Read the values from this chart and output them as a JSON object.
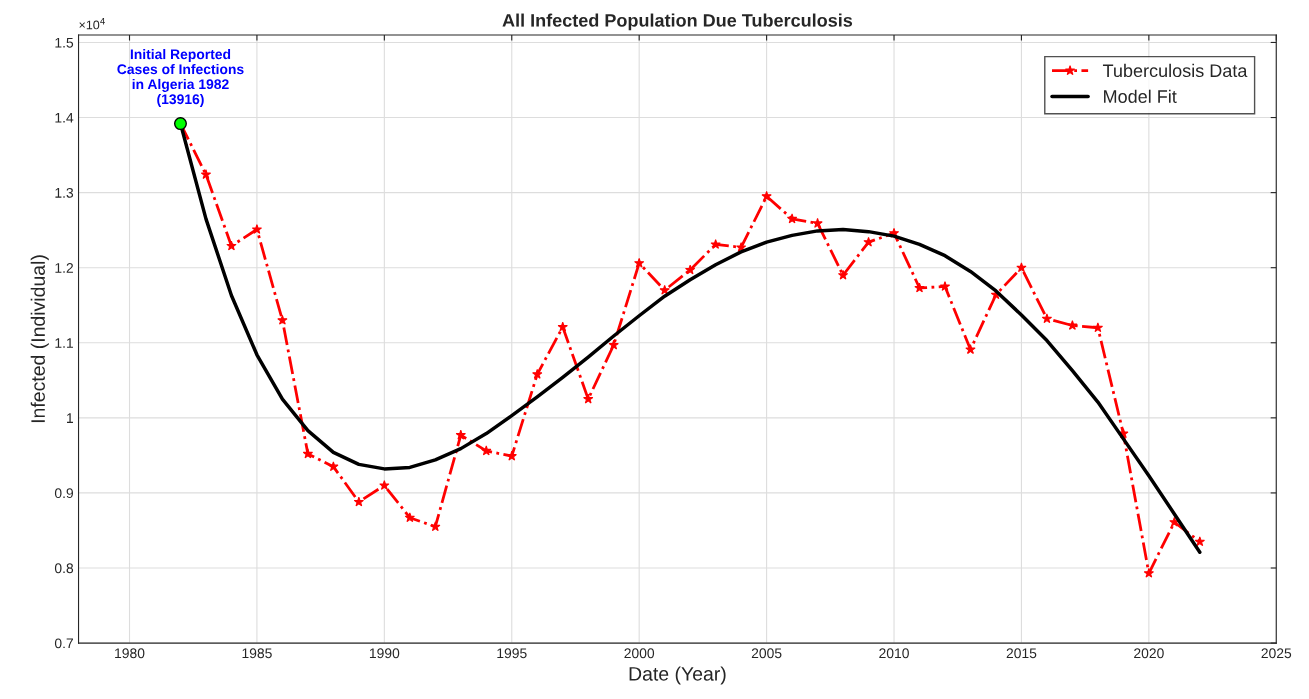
{
  "chart_data": {
    "type": "line",
    "title": "All Infected Population Due Tuberculosis",
    "xlabel": "Date (Year)",
    "ylabel": "Infected (Individual)",
    "x": [
      1982,
      1983,
      1984,
      1985,
      1986,
      1987,
      1988,
      1989,
      1990,
      1991,
      1992,
      1993,
      1994,
      1995,
      1996,
      1997,
      1998,
      1999,
      2000,
      2001,
      2002,
      2003,
      2004,
      2005,
      2006,
      2007,
      2008,
      2009,
      2010,
      2011,
      2012,
      2013,
      2014,
      2015,
      2016,
      2017,
      2018,
      2019,
      2020,
      2021,
      2022
    ],
    "series": [
      {
        "name": "Tuberculosis Data",
        "color": "#ff0000",
        "marker": "star",
        "line_style": "dashed",
        "values": [
          1.392,
          1.324,
          1.229,
          1.251,
          1.13,
          0.952,
          0.935,
          0.888,
          0.91,
          0.867,
          0.855,
          0.977,
          0.956,
          0.949,
          1.058,
          1.121,
          1.025,
          1.097,
          1.206,
          1.17,
          1.197,
          1.231,
          1.227,
          1.295,
          1.265,
          1.259,
          1.19,
          1.234,
          1.246,
          1.173,
          1.175,
          1.091,
          1.164,
          1.2,
          1.132,
          1.123,
          1.12,
          0.979,
          0.793,
          0.861,
          0.835
        ]
      },
      {
        "name": "Model Fit",
        "color": "#000000",
        "marker": "none",
        "line_style": "solid",
        "values": [
          1.392,
          1.265,
          1.163,
          1.084,
          1.025,
          0.983,
          0.954,
          0.938,
          0.932,
          0.934,
          0.944,
          0.959,
          0.979,
          1.003,
          1.028,
          1.054,
          1.081,
          1.109,
          1.136,
          1.162,
          1.184,
          1.204,
          1.221,
          1.234,
          1.243,
          1.249,
          1.251,
          1.248,
          1.242,
          1.231,
          1.216,
          1.195,
          1.169,
          1.137,
          1.103,
          1.063,
          1.021,
          0.972,
          0.923,
          0.872,
          0.821
        ]
      },
      {
        "type": "scatter",
        "color": "#00ff00",
        "marker": "circle",
        "x": [
          1982
        ],
        "values": [
          1.392
        ]
      }
    ],
    "xlim": [
      1978,
      2025
    ],
    "xticks": [
      1980,
      1985,
      1990,
      1995,
      2000,
      2005,
      2010,
      2015,
      2020,
      2025
    ],
    "ylim": [
      0.7,
      1.51
    ],
    "yticks": [
      0.7,
      0.8,
      0.9,
      1,
      1.1,
      1.2,
      1.3,
      1.4,
      1.5
    ],
    "annotations": [
      {
        "text": "Initial Reported\nCases of Infections\nin Algeria 1982\n(13916)",
        "x": 1982,
        "y": 1.392
      },
      "×10$^{4}$"
    ],
    "grid": true,
    "legend": "top right"
  }
}
